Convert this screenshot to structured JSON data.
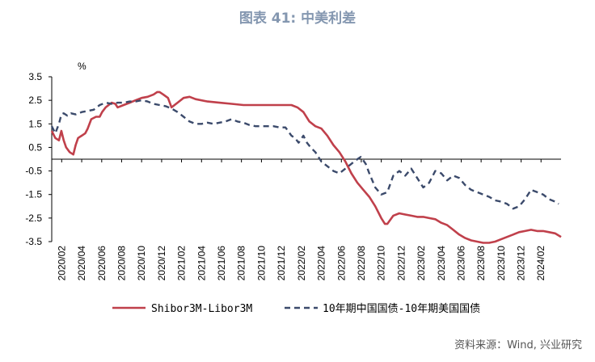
{
  "title": "图表 41: 中美利差",
  "source": "资料来源：Wind, 兴业研究",
  "colors": {
    "series1": "#c0404b",
    "series2": "#3b4a6b",
    "axis": "#000000",
    "title": "#8497b0"
  },
  "chart_data": {
    "type": "line",
    "title": "图表 41: 中美利差",
    "ylabel": "%",
    "xlabel": "",
    "ylim": [
      -3.5,
      3.5
    ],
    "yticks": [
      3.5,
      2.5,
      1.5,
      0.5,
      -0.5,
      -1.5,
      -2.5,
      -3.5
    ],
    "ytick_labels": [
      "3.5",
      "2.5",
      "1.5",
      "0.5",
      "-0.5",
      "-1.5",
      "-2.5",
      "-3.5"
    ],
    "xlim": [
      2020.0,
      2024.25
    ],
    "x_tick_labels": [
      "2020/02",
      "2020/04",
      "2020/06",
      "2020/08",
      "2020/10",
      "2020/12",
      "2021/02",
      "2021/04",
      "2021/06",
      "2021/08",
      "2021/10",
      "2021/12",
      "2022/02",
      "2022/04",
      "2022/06",
      "2022/08",
      "2022/10",
      "2022/12",
      "2023/02",
      "2023/04",
      "2023/06",
      "2023/08",
      "2023/10",
      "2023/12",
      "2024/02"
    ],
    "x_tick_values": [
      2020.083,
      2020.25,
      2020.417,
      2020.583,
      2020.75,
      2020.917,
      2021.083,
      2021.25,
      2021.417,
      2021.583,
      2021.75,
      2021.917,
      2022.083,
      2022.25,
      2022.417,
      2022.583,
      2022.75,
      2022.917,
      2023.083,
      2023.25,
      2023.417,
      2023.583,
      2023.75,
      2023.917,
      2024.083
    ],
    "grid": false,
    "legend": "bottom",
    "series": [
      {
        "name": "Shibor3M-Libor3M",
        "style": "solid",
        "x": [
          2020.0,
          2020.03,
          2020.06,
          2020.08,
          2020.1,
          2020.12,
          2020.15,
          2020.18,
          2020.2,
          2020.22,
          2020.25,
          2020.28,
          2020.3,
          2020.33,
          2020.37,
          2020.4,
          2020.42,
          2020.45,
          2020.5,
          2020.53,
          2020.55,
          2020.6,
          2020.65,
          2020.7,
          2020.75,
          2020.8,
          2020.85,
          2020.88,
          2020.9,
          2020.93,
          2020.97,
          2021.0,
          2021.05,
          2021.1,
          2021.15,
          2021.2,
          2021.3,
          2021.4,
          2021.5,
          2021.6,
          2021.7,
          2021.8,
          2021.9,
          2022.0,
          2022.05,
          2022.1,
          2022.15,
          2022.2,
          2022.25,
          2022.3,
          2022.35,
          2022.4,
          2022.45,
          2022.5,
          2022.55,
          2022.6,
          2022.65,
          2022.7,
          2022.75,
          2022.78,
          2022.8,
          2022.85,
          2022.9,
          2022.95,
          2023.0,
          2023.05,
          2023.1,
          2023.15,
          2023.2,
          2023.25,
          2023.3,
          2023.35,
          2023.4,
          2023.45,
          2023.5,
          2023.55,
          2023.6,
          2023.65,
          2023.7,
          2023.75,
          2023.8,
          2023.85,
          2023.9,
          2023.95,
          2024.0,
          2024.05,
          2024.1,
          2024.15,
          2024.2,
          2024.25
        ],
        "values": [
          1.2,
          0.9,
          0.8,
          1.2,
          0.8,
          0.5,
          0.3,
          0.2,
          0.6,
          0.9,
          1.0,
          1.1,
          1.3,
          1.7,
          1.8,
          1.8,
          2.0,
          2.2,
          2.4,
          2.35,
          2.2,
          2.3,
          2.4,
          2.5,
          2.6,
          2.65,
          2.75,
          2.85,
          2.85,
          2.75,
          2.6,
          2.2,
          2.4,
          2.6,
          2.65,
          2.55,
          2.45,
          2.4,
          2.35,
          2.3,
          2.3,
          2.3,
          2.3,
          2.3,
          2.2,
          2.0,
          1.6,
          1.4,
          1.3,
          1.0,
          0.6,
          0.3,
          -0.1,
          -0.6,
          -1.0,
          -1.3,
          -1.6,
          -2.0,
          -2.5,
          -2.75,
          -2.75,
          -2.4,
          -2.3,
          -2.35,
          -2.4,
          -2.45,
          -2.45,
          -2.5,
          -2.55,
          -2.7,
          -2.8,
          -3.0,
          -3.2,
          -3.35,
          -3.45,
          -3.5,
          -3.55,
          -3.55,
          -3.5,
          -3.4,
          -3.3,
          -3.2,
          -3.1,
          -3.05,
          -3.0,
          -3.05,
          -3.05,
          -3.1,
          -3.15,
          -3.3
        ]
      },
      {
        "name": "10年期中国国债-10年期美国国债",
        "style": "dashed",
        "x": [
          2020.0,
          2020.03,
          2020.06,
          2020.08,
          2020.1,
          2020.13,
          2020.16,
          2020.2,
          2020.25,
          2020.3,
          2020.35,
          2020.4,
          2020.45,
          2020.5,
          2020.55,
          2020.6,
          2020.65,
          2020.7,
          2020.75,
          2020.8,
          2020.85,
          2020.9,
          2020.95,
          2021.0,
          2021.05,
          2021.1,
          2021.15,
          2021.2,
          2021.25,
          2021.3,
          2021.35,
          2021.4,
          2021.45,
          2021.5,
          2021.55,
          2021.6,
          2021.65,
          2021.7,
          2021.75,
          2021.8,
          2021.85,
          2021.9,
          2021.95,
          2022.0,
          2022.03,
          2022.06,
          2022.1,
          2022.13,
          2022.16,
          2022.2,
          2022.25,
          2022.3,
          2022.35,
          2022.4,
          2022.45,
          2022.5,
          2022.55,
          2022.58,
          2022.62,
          2022.65,
          2022.7,
          2022.75,
          2022.8,
          2022.85,
          2022.9,
          2022.95,
          2023.0,
          2023.05,
          2023.1,
          2023.15,
          2023.2,
          2023.25,
          2023.3,
          2023.35,
          2023.4,
          2023.45,
          2023.5,
          2023.55,
          2023.6,
          2023.65,
          2023.7,
          2023.75,
          2023.8,
          2023.85,
          2023.9,
          2023.95,
          2024.0,
          2024.05,
          2024.1,
          2024.15,
          2024.2,
          2024.23
        ],
        "values": [
          1.4,
          1.1,
          1.5,
          1.9,
          1.95,
          1.85,
          1.95,
          1.9,
          2.0,
          2.05,
          2.1,
          2.3,
          2.4,
          2.35,
          2.4,
          2.4,
          2.45,
          2.45,
          2.5,
          2.45,
          2.35,
          2.3,
          2.25,
          2.15,
          2.0,
          1.8,
          1.6,
          1.5,
          1.5,
          1.55,
          1.5,
          1.55,
          1.6,
          1.7,
          1.6,
          1.55,
          1.45,
          1.4,
          1.4,
          1.4,
          1.4,
          1.35,
          1.35,
          1.0,
          0.9,
          0.7,
          1.0,
          0.7,
          0.5,
          0.3,
          -0.1,
          -0.3,
          -0.5,
          -0.6,
          -0.4,
          -0.2,
          0.0,
          0.1,
          -0.2,
          -0.6,
          -1.2,
          -1.5,
          -1.4,
          -0.7,
          -0.5,
          -0.7,
          -0.4,
          -0.8,
          -1.2,
          -1.0,
          -0.5,
          -0.6,
          -0.9,
          -0.7,
          -0.8,
          -1.1,
          -1.3,
          -1.4,
          -1.5,
          -1.6,
          -1.75,
          -1.8,
          -1.9,
          -2.1,
          -2.0,
          -1.7,
          -1.3,
          -1.4,
          -1.5,
          -1.7,
          -1.8,
          -1.9
        ]
      }
    ]
  }
}
